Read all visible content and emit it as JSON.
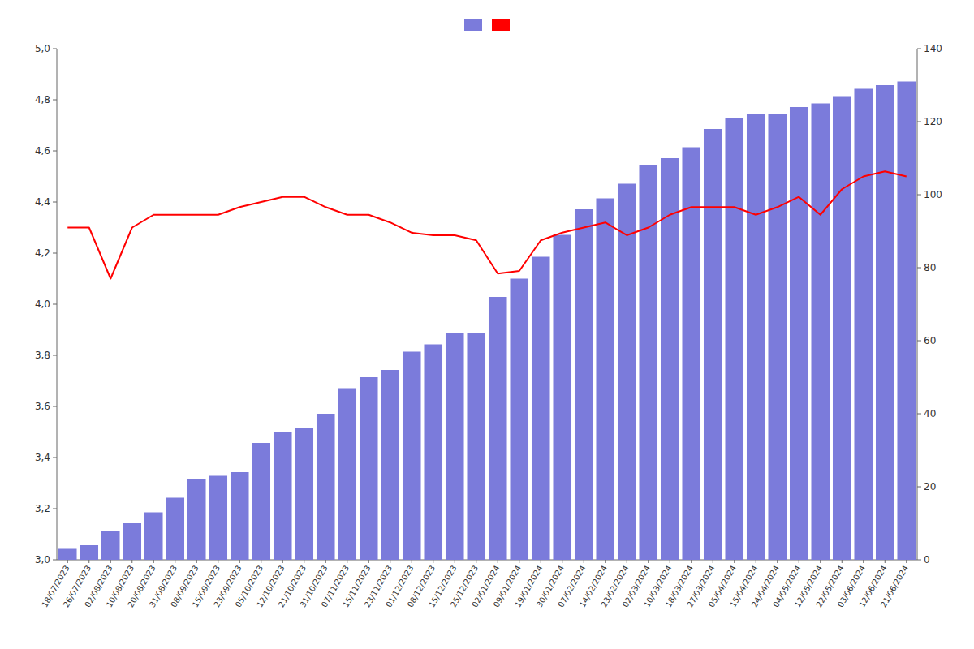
{
  "chart_data": {
    "type": "bar",
    "categories": [
      "18/07/2023",
      "26/07/2023",
      "02/08/2023",
      "10/08/2023",
      "20/08/2023",
      "31/08/2023",
      "08/09/2023",
      "15/09/2023",
      "23/09/2023",
      "05/10/2023",
      "12/10/2023",
      "21/10/2023",
      "31/10/2023",
      "07/11/2023",
      "15/11/2023",
      "23/11/2023",
      "01/12/2023",
      "08/12/2023",
      "15/12/2023",
      "25/12/2023",
      "02/01/2024",
      "09/01/2024",
      "19/01/2024",
      "30/01/2024",
      "07/02/2024",
      "14/02/2024",
      "23/02/2024",
      "02/03/2024",
      "10/03/2024",
      "18/03/2024",
      "27/03/2024",
      "05/04/2024",
      "15/04/2024",
      "24/04/2024",
      "04/05/2024",
      "12/05/2024",
      "22/05/2024",
      "03/06/2024",
      "12/06/2024",
      "21/06/2024"
    ],
    "series": [
      {
        "type": "bar",
        "color": "#7b7bdb",
        "axis": "y2",
        "values": [
          3,
          4,
          8,
          10,
          13,
          17,
          22,
          23,
          24,
          32,
          35,
          36,
          40,
          47,
          50,
          52,
          57,
          59,
          62,
          62,
          72,
          77,
          83,
          89,
          96,
          99,
          103,
          108,
          110,
          113,
          118,
          121,
          122,
          122,
          124,
          125,
          127,
          129,
          130,
          131
        ]
      },
      {
        "type": "line",
        "color": "#ff0000",
        "values": [
          4.3,
          4.3,
          4.1,
          4.3,
          4.35,
          4.35,
          4.35,
          4.35,
          4.38,
          4.4,
          4.42,
          4.42,
          4.38,
          4.35,
          4.35,
          4.32,
          4.28,
          4.27,
          4.27,
          4.25,
          4.12,
          4.13,
          4.25,
          4.28,
          4.3,
          4.32,
          4.27,
          4.3,
          4.35,
          4.38,
          4.38,
          4.38,
          4.35,
          4.38,
          4.42,
          4.35,
          4.45,
          4.5,
          4.52,
          4.5
        ]
      }
    ],
    "ylim": [
      3.0,
      5.0
    ],
    "yticks": [
      {
        "value": 3.0,
        "label": "3,0"
      },
      {
        "value": 3.2,
        "label": "3,2"
      },
      {
        "value": 3.4,
        "label": "3,4"
      },
      {
        "value": 3.6,
        "label": "3,6"
      },
      {
        "value": 3.8,
        "label": "3,8"
      },
      {
        "value": 4.0,
        "label": "4,0"
      },
      {
        "value": 4.2,
        "label": "4,2"
      },
      {
        "value": 4.4,
        "label": "4,4"
      },
      {
        "value": 4.6,
        "label": "4,6"
      },
      {
        "value": 4.8,
        "label": "4,8"
      },
      {
        "value": 5.0,
        "label": "5,0"
      }
    ],
    "y2lim": [
      0,
      140
    ],
    "y2ticks": [
      0,
      20,
      40,
      60,
      80,
      100,
      120,
      140
    ],
    "legend": "top"
  }
}
